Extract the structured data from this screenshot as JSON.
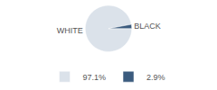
{
  "chart_data": {
    "type": "pie",
    "categories": [
      "WHITE",
      "BLACK"
    ],
    "values": [
      97.1,
      2.9
    ],
    "value_labels": [
      "97.1%",
      "2.9%"
    ],
    "colors": [
      "#dbe2ea",
      "#3b5b7e"
    ],
    "legend": "bottom"
  }
}
